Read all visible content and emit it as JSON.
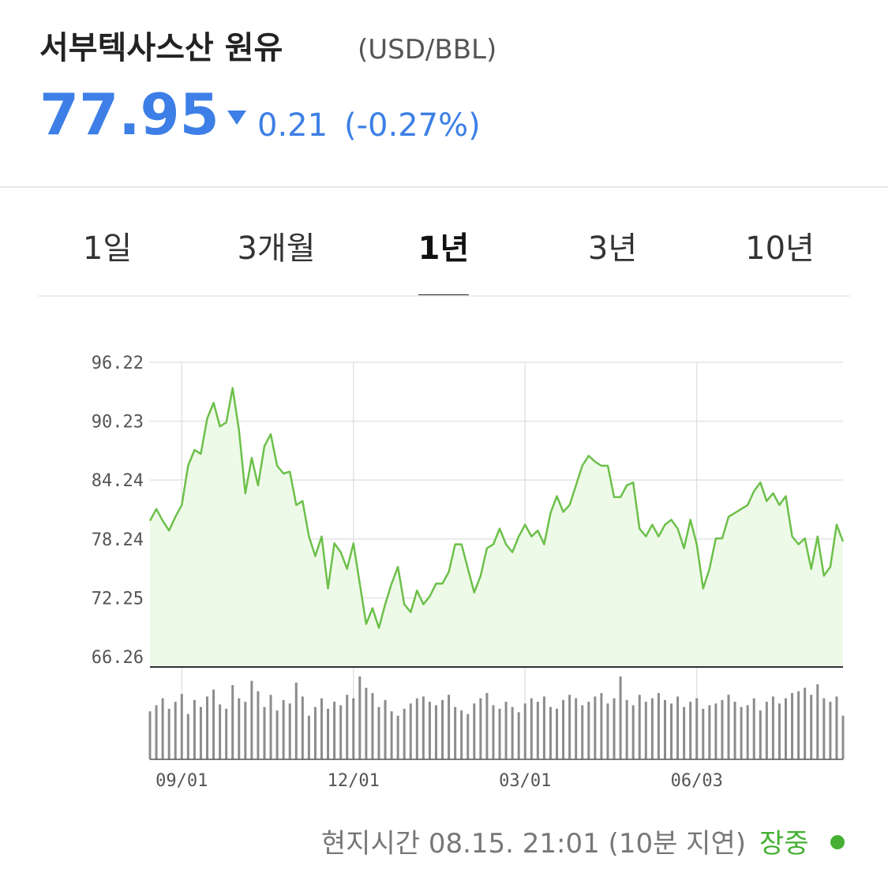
{
  "header": {
    "title": "서부텍사스산 원유",
    "unit": "(USD/BBL)",
    "price": 77.95,
    "change": "0.21",
    "change_percent": "(-0.27%)"
  },
  "tabs": {
    "items": [
      "1일",
      "3개월",
      "1년",
      "3년",
      "10년"
    ],
    "selected": 2
  },
  "chart_data": {
    "type": "line",
    "color": "#6cc04a",
    "fill": "#eefae8",
    "volume_color": "#8c8c8c",
    "grid": true,
    "ylim": [
      65.22,
      96.22
    ],
    "yticks": [
      96.22,
      90.23,
      84.24,
      78.24,
      72.25,
      66.26
    ],
    "categories": [
      null,
      null,
      null,
      null,
      null,
      "09/01",
      null,
      null,
      null,
      null,
      null,
      null,
      null,
      null,
      null,
      null,
      null,
      null,
      null,
      null,
      null,
      null,
      null,
      null,
      null,
      null,
      null,
      null,
      null,
      null,
      null,
      null,
      "12/01",
      null,
      null,
      null,
      null,
      null,
      null,
      null,
      null,
      null,
      null,
      null,
      null,
      null,
      null,
      null,
      null,
      null,
      null,
      null,
      null,
      null,
      null,
      null,
      null,
      null,
      null,
      "03/01",
      null,
      null,
      null,
      null,
      null,
      null,
      null,
      null,
      null,
      null,
      null,
      null,
      null,
      null,
      null,
      null,
      null,
      null,
      null,
      null,
      null,
      null,
      null,
      null,
      null,
      null,
      "06/03",
      null,
      null,
      null,
      null,
      null,
      null,
      null,
      null,
      null,
      null,
      null,
      null,
      null,
      null,
      null,
      null,
      null,
      null,
      null,
      null,
      null,
      null,
      null
    ],
    "values": [
      80.1,
      81.3,
      80.1,
      79.1,
      80.5,
      81.7,
      85.7,
      87.3,
      86.9,
      90.5,
      92.1,
      89.7,
      90.1,
      93.6,
      89.3,
      82.9,
      86.5,
      83.7,
      87.7,
      88.9,
      85.7,
      84.9,
      85.1,
      81.7,
      82.1,
      78.5,
      76.5,
      78.5,
      73.2,
      77.8,
      76.9,
      75.2,
      77.8,
      73.7,
      69.6,
      71.2,
      69.2,
      71.6,
      73.7,
      75.4,
      71.6,
      70.8,
      73.0,
      71.6,
      72.4,
      73.7,
      73.7,
      74.9,
      77.7,
      77.7,
      75.2,
      72.8,
      74.5,
      77.3,
      77.7,
      79.3,
      77.7,
      76.9,
      78.5,
      79.7,
      78.5,
      79.1,
      77.7,
      80.9,
      82.6,
      81.0,
      81.7,
      83.7,
      85.7,
      86.7,
      86.1,
      85.7,
      85.7,
      82.5,
      82.5,
      83.7,
      84.0,
      79.3,
      78.5,
      79.7,
      78.5,
      79.7,
      80.2,
      79.3,
      77.3,
      80.2,
      77.7,
      73.2,
      75.2,
      78.3,
      78.3,
      80.5,
      80.9,
      81.3,
      81.7,
      83.1,
      84.0,
      82.1,
      82.9,
      81.7,
      82.6,
      78.5,
      77.7,
      78.3,
      75.2,
      78.5,
      74.5,
      75.4,
      79.7,
      78.0
    ],
    "volume": [
      55,
      62,
      70,
      58,
      66,
      75,
      52,
      68,
      60,
      72,
      80,
      63,
      58,
      85,
      70,
      66,
      90,
      78,
      60,
      74,
      56,
      68,
      64,
      88,
      72,
      50,
      60,
      70,
      58,
      66,
      62,
      74,
      70,
      95,
      82,
      76,
      60,
      68,
      55,
      50,
      58,
      64,
      70,
      72,
      66,
      62,
      68,
      74,
      60,
      56,
      52,
      64,
      70,
      76,
      62,
      58,
      66,
      60,
      54,
      64,
      70,
      66,
      72,
      60,
      58,
      68,
      74,
      70,
      62,
      66,
      72,
      76,
      64,
      70,
      95,
      68,
      62,
      74,
      66,
      70,
      76,
      68,
      64,
      72,
      60,
      66,
      70,
      58,
      62,
      64,
      68,
      74,
      66,
      60,
      62,
      70,
      56,
      66,
      72,
      64,
      70,
      76,
      78,
      82,
      74,
      86,
      70,
      66,
      72,
      50
    ]
  },
  "footer": {
    "timestamp": "현지시간 08.15. 21:01 (10분 지연)",
    "status": "장중"
  }
}
